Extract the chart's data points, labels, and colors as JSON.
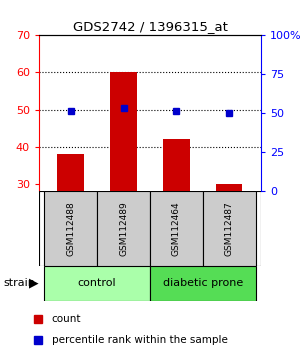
{
  "title": "GDS2742 / 1396315_at",
  "samples": [
    "GSM112488",
    "GSM112489",
    "GSM112464",
    "GSM112487"
  ],
  "group_labels": [
    "control",
    "diabetic prone"
  ],
  "red_values": [
    38,
    60,
    42,
    30
  ],
  "blue_values": [
    51.5,
    53.5,
    51.5,
    50
  ],
  "ylim_left": [
    28,
    70
  ],
  "ylim_right": [
    0,
    100
  ],
  "yticks_left": [
    30,
    40,
    50,
    60,
    70
  ],
  "yticks_right": [
    0,
    25,
    50,
    75,
    100
  ],
  "ytick_labels_right": [
    "0",
    "25",
    "50",
    "75",
    "100%"
  ],
  "bar_color": "#cc0000",
  "dot_color": "#0000cc",
  "bar_width": 0.5,
  "sample_box_color": "#cccccc",
  "group_colors": [
    "#aaffaa",
    "#55dd55"
  ],
  "legend_red_label": "count",
  "legend_blue_label": "percentile rank within the sample"
}
